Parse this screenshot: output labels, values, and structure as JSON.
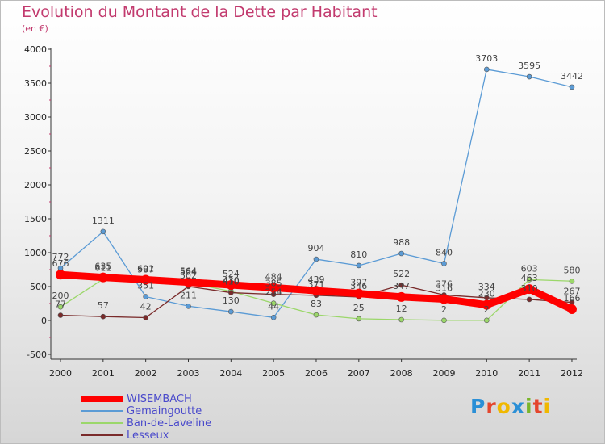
{
  "header": {
    "title": "Evolution du Montant de la Dette par Habitant",
    "subtitle": "(en €)"
  },
  "logo": {
    "letters": [
      "P",
      "r",
      "o",
      "x",
      "i",
      "t",
      "i"
    ],
    "colors": [
      "#2a8fd6",
      "#e4462d",
      "#f0b800",
      "#2a8fd6",
      "#7ab52a",
      "#e4462d",
      "#f0b800"
    ]
  },
  "chart_data": {
    "type": "line",
    "title": "Evolution du Montant de la Dette par Habitant",
    "subtitle": "(en €)",
    "xlabel": "",
    "ylabel": "",
    "x": [
      "2000",
      "2001",
      "2002",
      "2003",
      "2004",
      "2005",
      "2006",
      "2007",
      "2008",
      "2009",
      "2010",
      "2011",
      "2012"
    ],
    "ylim": [
      -500,
      4000
    ],
    "yticks": [
      "-500",
      "0",
      "500",
      "1000",
      "1500",
      "2000",
      "2500",
      "3000",
      "3500",
      "4000"
    ],
    "grid": false,
    "legend_position": "bottom-left",
    "series": [
      {
        "name": "Gemaingoutte",
        "color": "#5b9bd5",
        "values": [
          772,
          1311,
          351,
          211,
          130,
          44,
          904,
          810,
          988,
          840,
          3703,
          3595,
          3442
        ],
        "labels": [
          "772",
          "1311",
          "351",
          "211",
          "130",
          "44",
          "904",
          "810",
          "988",
          "840",
          "3703",
          "3595",
          "3442"
        ]
      },
      {
        "name": "Ban-de-Laveline",
        "color": "#9bd76a",
        "values": [
          200,
          611,
          587,
          554,
          430,
          254,
          83,
          25,
          12,
          2,
          2,
          603,
          580
        ],
        "labels": [
          "200",
          "611",
          "587",
          "554",
          "430",
          "254",
          "83",
          "25",
          "12",
          "2",
          "2",
          "603",
          "580"
        ]
      },
      {
        "name": "Lesseux",
        "color": "#7a2b2b",
        "values": [
          77,
          57,
          42,
          502,
          410,
          385,
          371,
          346,
          522,
          376,
          334,
          310,
          267
        ],
        "labels": [
          "77",
          "57",
          "42",
          "502",
          "410",
          "385",
          "371",
          "346",
          "522",
          "376",
          "334",
          "310",
          "267"
        ]
      },
      {
        "name": "WISEMBACH",
        "color": "#ff0000",
        "values": [
          676,
          635,
          601,
          564,
          524,
          484,
          439,
          397,
          347,
          316,
          230,
          463,
          166
        ],
        "labels": [
          "676",
          "635",
          "601",
          "564",
          "524",
          "484",
          "439",
          "397",
          "347",
          "316",
          "230",
          "463",
          "166"
        ]
      }
    ],
    "legend_order": [
      "WISEMBACH",
      "Gemaingoutte",
      "Ban-de-Laveline",
      "Lesseux"
    ]
  }
}
